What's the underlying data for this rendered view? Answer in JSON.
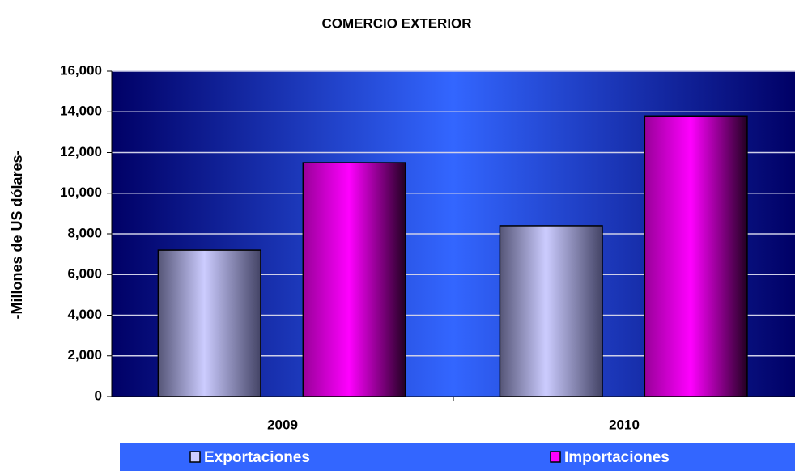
{
  "chart_data": {
    "type": "bar",
    "title": "COMERCIO EXTERIOR",
    "y_label": "-Millones de US dólares-",
    "categories": [
      "2009",
      "2010"
    ],
    "series": [
      {
        "name": "Exportaciones",
        "color": "#ccccff",
        "values": [
          7200,
          8400
        ]
      },
      {
        "name": "Importaciones",
        "color": "#ff00ff",
        "values": [
          11500,
          13800
        ]
      }
    ],
    "ylim": [
      0,
      16000
    ],
    "yticks": [
      0,
      {
        "value": 2000,
        "label": "2,000"
      },
      {
        "value": 4000,
        "label": "4,000"
      },
      {
        "value": 6000,
        "label": "6,000"
      },
      {
        "value": 8000,
        "label": "8,000"
      },
      {
        "value": 10000,
        "label": "10,000"
      },
      {
        "value": 12000,
        "label": "12,000"
      },
      {
        "value": 14000,
        "label": "14,000"
      },
      {
        "value": 16000,
        "label": "16,000"
      }
    ],
    "grid": true,
    "legend": "bottom"
  }
}
